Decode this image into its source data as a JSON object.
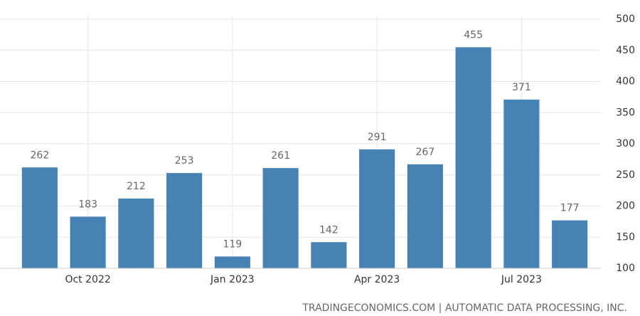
{
  "chart_data": {
    "type": "bar",
    "categories": [
      null,
      "Oct 2022",
      null,
      null,
      "Jan 2023",
      null,
      null,
      "Apr 2023",
      null,
      null,
      "Jul 2023",
      null
    ],
    "values": [
      262,
      183,
      212,
      253,
      119,
      261,
      142,
      291,
      267,
      455,
      371,
      177
    ],
    "color": "#4682b4",
    "ylim": [
      100,
      500
    ],
    "yticks": [
      100,
      150,
      200,
      250,
      300,
      350,
      400,
      450,
      500
    ],
    "grid": true,
    "source": "TRADINGECONOMICS.COM | AUTOMATIC DATA PROCESSING, INC."
  }
}
